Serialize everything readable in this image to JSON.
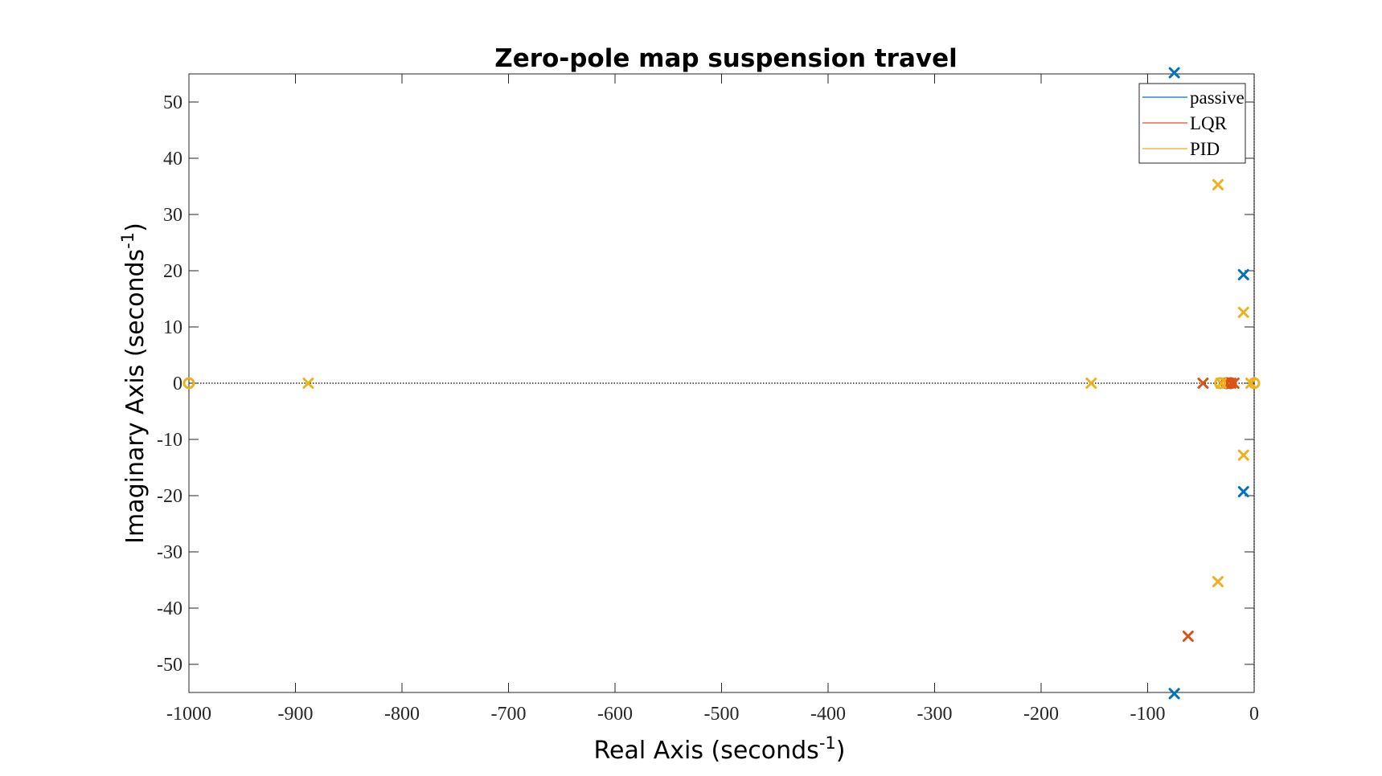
{
  "chart_data": {
    "type": "scatter",
    "title": "Zero-pole map suspension travel",
    "xlabel": {
      "base": "Real Axis (seconds",
      "sup": "-1",
      "tail": ")"
    },
    "ylabel": {
      "base": "Imaginary Axis (seconds",
      "sup": "-1",
      "tail": ")"
    },
    "xlim": [
      -1000,
      0
    ],
    "ylim": [
      -55,
      55
    ],
    "xticks": [
      -1000,
      -900,
      -800,
      -700,
      -600,
      -500,
      -400,
      -300,
      -200,
      -100,
      0
    ],
    "yticks": [
      -50,
      -40,
      -30,
      -20,
      -10,
      0,
      10,
      20,
      30,
      40,
      50
    ],
    "legend_position": "top-right",
    "grid": false,
    "series": [
      {
        "name": "passive",
        "color": "#0072BD",
        "poles": [
          [
            -75,
            55.2
          ],
          [
            -75,
            -55.2
          ],
          [
            -10,
            19.3
          ],
          [
            -10,
            -19.3
          ]
        ],
        "zeros": []
      },
      {
        "name": "LQR",
        "color": "#D95319",
        "poles": [
          [
            -48,
            0
          ],
          [
            -26,
            0
          ],
          [
            -22,
            0
          ],
          [
            -19,
            0
          ],
          [
            -62,
            -45
          ]
        ],
        "zeros": [
          [
            -26,
            0
          ],
          [
            -22,
            0
          ]
        ]
      },
      {
        "name": "PID",
        "color": "#EDB120",
        "poles": [
          [
            -888,
            0
          ],
          [
            -153,
            0
          ],
          [
            -34,
            35.3
          ],
          [
            -34,
            -35.3
          ],
          [
            -10,
            12.6
          ],
          [
            -10,
            -12.8
          ],
          [
            -31,
            0
          ],
          [
            -3,
            0
          ]
        ],
        "zeros": [
          [
            -1000,
            0
          ],
          [
            -32,
            0
          ],
          [
            0,
            0
          ]
        ]
      }
    ]
  }
}
